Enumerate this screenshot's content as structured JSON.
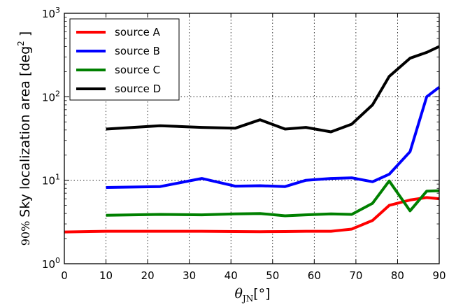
{
  "chart_data": {
    "type": "line",
    "xlabel_main": "θ",
    "xlabel_sub": "JN",
    "xlabel_unit": "[°]",
    "ylabel_prefix": "90%",
    "ylabel_main": "Sky localization area [deg",
    "ylabel_sup": "2",
    "ylabel_suffix": " ]",
    "xlim": [
      0,
      90
    ],
    "ylim": [
      1,
      1000
    ],
    "yscale": "log",
    "grid": true,
    "legend_position": "top-left",
    "x_ticks": [
      0,
      10,
      20,
      30,
      40,
      50,
      60,
      70,
      80,
      90
    ],
    "x_tick_labels": [
      "0",
      "10",
      "20",
      "30",
      "40",
      "50",
      "60",
      "70",
      "80",
      "90"
    ],
    "y_ticks": [
      1,
      10,
      100,
      1000
    ],
    "y_tick_labels": [
      {
        "base": "10",
        "exp": "0"
      },
      {
        "base": "10",
        "exp": "1"
      },
      {
        "base": "10",
        "exp": "2"
      },
      {
        "base": "10",
        "exp": "3"
      }
    ],
    "series": [
      {
        "name": "source A",
        "color": "#ff0000",
        "x": [
          0,
          10,
          23,
          33,
          41,
          47,
          53,
          58,
          64,
          69,
          74,
          78,
          83,
          87,
          90
        ],
        "y": [
          2.4,
          2.45,
          2.45,
          2.45,
          2.43,
          2.42,
          2.43,
          2.45,
          2.45,
          2.6,
          3.3,
          5.0,
          5.8,
          6.2,
          6.0
        ]
      },
      {
        "name": "source B",
        "color": "#0000ff",
        "x": [
          10,
          23,
          33,
          41,
          47,
          53,
          58,
          64,
          69,
          74,
          78,
          83,
          87,
          90
        ],
        "y": [
          8.2,
          8.4,
          10.5,
          8.5,
          8.6,
          8.4,
          10.0,
          10.5,
          10.7,
          9.6,
          11.8,
          22.0,
          100.0,
          130.0
        ]
      },
      {
        "name": "source C",
        "color": "#008000",
        "x": [
          10,
          23,
          33,
          41,
          47,
          53,
          58,
          64,
          69,
          74,
          78,
          83,
          87,
          90
        ],
        "y": [
          3.8,
          3.9,
          3.85,
          3.95,
          4.0,
          3.75,
          3.85,
          3.95,
          3.9,
          5.3,
          9.8,
          4.3,
          7.4,
          7.5
        ]
      },
      {
        "name": "source D",
        "color": "#000000",
        "x": [
          10,
          23,
          33,
          41,
          47,
          53,
          58,
          64,
          69,
          74,
          78,
          83,
          87,
          90
        ],
        "y": [
          41,
          45,
          43,
          42,
          53,
          41,
          43,
          38,
          47,
          80,
          175,
          290,
          340,
          400
        ]
      }
    ]
  }
}
